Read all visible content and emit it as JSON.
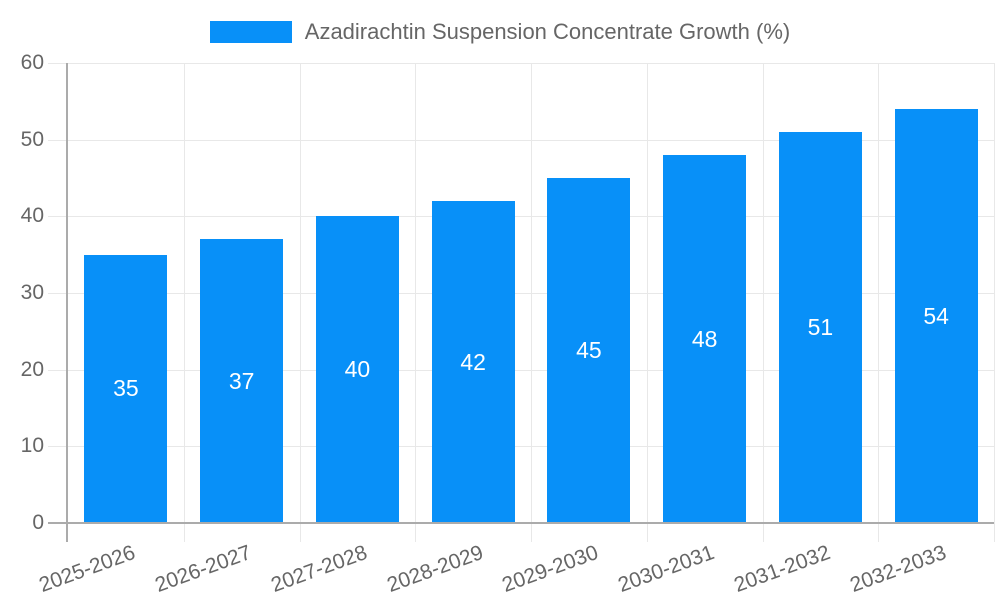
{
  "chart_data": {
    "type": "bar",
    "title": "Azadirachtin Suspension Concentrate Growth (%)",
    "categories": [
      "2025-2026",
      "2026-2027",
      "2027-2028",
      "2028-2029",
      "2029-2030",
      "2030-2031",
      "2031-2032",
      "2032-2033"
    ],
    "values": [
      35,
      37,
      40,
      42,
      45,
      48,
      51,
      54
    ],
    "xlabel": "",
    "ylabel": "",
    "ylim": [
      0,
      60
    ],
    "ytick_step": 10,
    "yticks": [
      0,
      10,
      20,
      30,
      40,
      50,
      60
    ],
    "grid": true,
    "legend_position": "top-center",
    "value_label_position": "inside-center",
    "x_label_rotation_deg": -20
  },
  "colors": {
    "bar": "#0890f8",
    "axis_text": "#666666",
    "value_label_text": "#ffffff",
    "gridline": "#e8e8e8",
    "axis_line": "#ababab",
    "legend_text": "#666666",
    "background": "#ffffff"
  }
}
